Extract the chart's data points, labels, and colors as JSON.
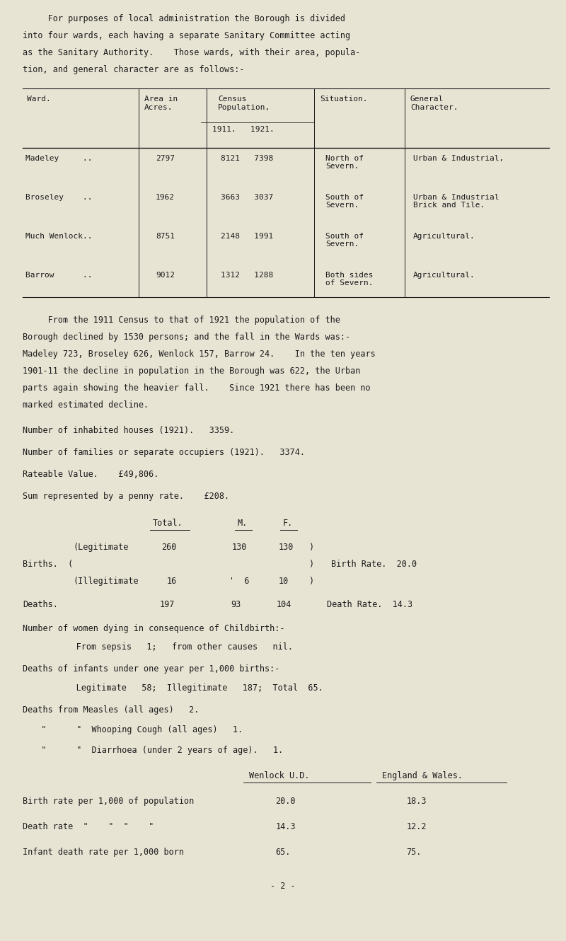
{
  "bg_color": "#e8e4d4",
  "text_color": "#1a1a1a",
  "intro_text": [
    "     For purposes of local administration the Borough is divided",
    "into four wards, each having a separate Sanitary Committee acting",
    "as the Sanitary Authority.    Those wards, with their area, popula-",
    "tion, and general character are as follows:-"
  ],
  "para1": [
    "     From the 1911 Census to that of 1921 the population of the",
    "Borough declined by 1530 persons; and the fall in the Wards was:-",
    "Madeley 723, Broseley 626, Wenlock 157, Barrow 24.    In the ten years",
    "1901-11 the decline in population in the Borough was 622, the Urban",
    "parts again showing the heavier fall.    Since 1921 there has been no",
    "marked estimated decline."
  ],
  "line1": "Number of inhabited houses (1921).   3359.",
  "line2": "Number of families or separate occupiers (1921).   3374.",
  "line3": "Rateable Value.    £49,806.",
  "line4": "Sum represented by a penny rate.    £208.",
  "childbirth_hdr": "Number of women dying in consequence of Childbirth:-",
  "sepsis_line": "     From sepsis   1;   from other causes   nil.",
  "infant_hdr": "Deaths of infants under one year per 1,000 births:-",
  "infant_line": "     Legitimate   58;  Illegitimate   187;  Total  65.",
  "measles_line": "Deaths from Measles (all ages)   2.",
  "whooping_line": "  \"      \"  Whooping Cough (all ages)   1.",
  "diarrhoea_line": "  \"      \"  Diarrhoea (under 2 years of age).   1.",
  "page_number": "- 2 -",
  "fontsize_main": 8.5,
  "fontsize_small": 8.0,
  "lh": 0.018
}
